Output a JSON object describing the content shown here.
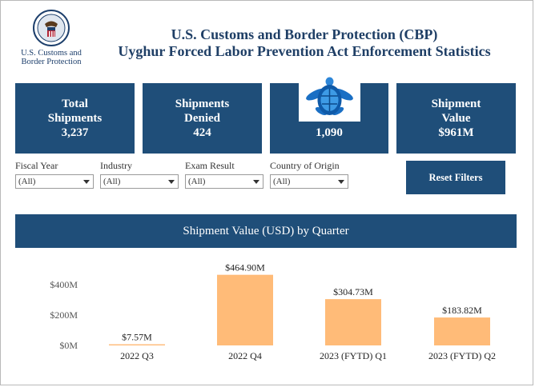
{
  "logo": {
    "text_line1": "U.S. Customs and",
    "text_line2": "Border Protection"
  },
  "header": {
    "title_line1": "U.S. Customs and Border Protection (CBP)",
    "title_line2": "Uyghur Forced Labor Prevention Act Enforcement Statistics"
  },
  "cards": [
    {
      "label_line1": "Total",
      "label_line2": "Shipments",
      "value": "3,237"
    },
    {
      "label_line1": "Shipments",
      "label_line2": "Denied",
      "value": "424"
    },
    {
      "value": "1,090"
    },
    {
      "label_line1": "Shipment",
      "label_line2": "Value",
      "value": "$961M"
    }
  ],
  "filters": [
    {
      "label": "Fiscal Year",
      "value": "(All)"
    },
    {
      "label": "Industry",
      "value": "(All)"
    },
    {
      "label": "Exam Result",
      "value": "(All)"
    },
    {
      "label": "Country of Origin",
      "value": "(All)"
    }
  ],
  "reset_label": "Reset Filters",
  "colors": {
    "navy": "#1f4e79",
    "bar": "#ffbb78"
  },
  "chart_data": {
    "type": "bar",
    "title": "Shipment Value (USD) by Quarter",
    "categories": [
      "2022 Q3",
      "2022 Q4",
      "2023 (FYTD) Q1",
      "2023 (FYTD) Q2"
    ],
    "values": [
      7.57,
      464.9,
      304.73,
      183.82
    ],
    "data_labels": [
      "$7.57M",
      "$464.90M",
      "$304.73M",
      "$183.82M"
    ],
    "yticks": [
      {
        "value": 0,
        "label": "$0M"
      },
      {
        "value": 200,
        "label": "$200M"
      },
      {
        "value": 400,
        "label": "$400M"
      }
    ],
    "ylim": [
      0,
      500
    ],
    "grid": false
  }
}
